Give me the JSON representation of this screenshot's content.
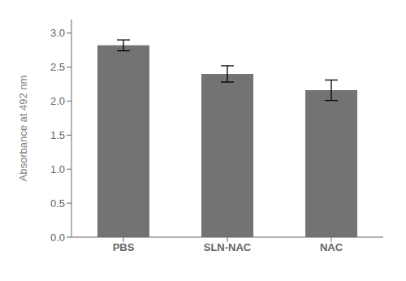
{
  "chart_data": {
    "type": "bar",
    "categories": [
      "PBS",
      "SLN-NAC",
      "NAC"
    ],
    "values": [
      2.82,
      2.4,
      2.16
    ],
    "errors": [
      0.08,
      0.12,
      0.15
    ],
    "color": "#737373",
    "ylabel": "Absorbance at 492 nm",
    "ylim": [
      0.0,
      3.2
    ],
    "yticks": [
      {
        "value": 0.0,
        "label": "0.0"
      },
      0.5,
      {
        "value": 1.0,
        "label": "1.0"
      },
      1.5,
      {
        "value": 2.0,
        "label": "2.0"
      },
      2.5,
      {
        "value": 3.0,
        "label": "3.0"
      }
    ],
    "grid": false
  }
}
